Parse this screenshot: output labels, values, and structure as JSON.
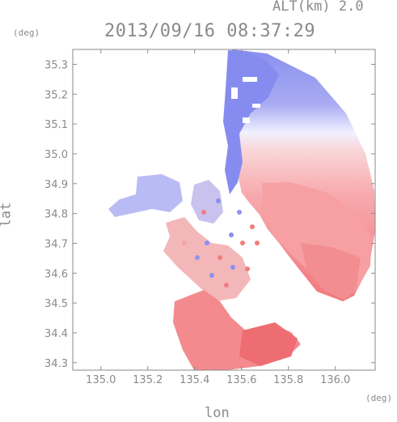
{
  "header": {
    "altitude_label": "ALT(km) 2.0",
    "timestamp": "2013/09/16 08:37:29"
  },
  "chart_data": {
    "type": "heatmap",
    "title": "2013/09/16 08:37:29",
    "subtitle": "ALT(km) 2.0",
    "xlabel": "lon",
    "ylabel": "lat",
    "x_unit": "(deg)",
    "y_unit": "(deg)",
    "xlim": [
      134.88,
      136.17
    ],
    "ylim": [
      34.275,
      35.35
    ],
    "x_ticks": [
      "135.0",
      "135.2",
      "135.4",
      "135.6",
      "135.8",
      "136.0"
    ],
    "y_ticks": [
      "34.3",
      "34.4",
      "34.5",
      "34.6",
      "34.7",
      "34.8",
      "34.9",
      "35.0",
      "35.1",
      "35.2",
      "35.3"
    ],
    "grid": false,
    "colors": {
      "approaching": "#7f86ee",
      "receding": "#f2787c",
      "neutral": "#f3f3ff",
      "axis": "#8a8a8a"
    }
  }
}
